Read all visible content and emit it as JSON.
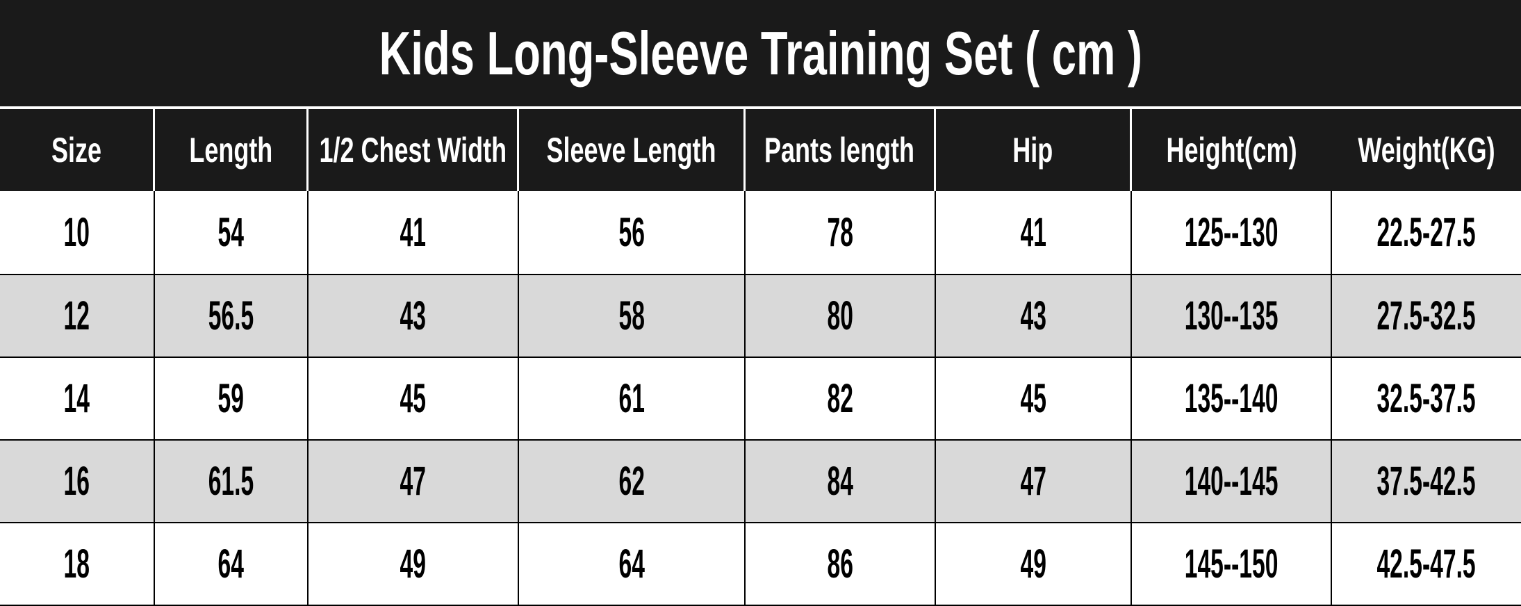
{
  "title": "Kids Long-Sleeve Training Set ( cm )",
  "colors": {
    "band_background": "#1a1a1a",
    "header_text": "#ffffff",
    "row_background": "#ffffff",
    "row_alt_background": "#d9d9d9",
    "data_text": "#000000",
    "grid_line": "#000000",
    "header_divider": "#ffffff"
  },
  "chart_data": {
    "type": "table",
    "title": "Kids Long-Sleeve Training Set ( cm )",
    "columns": [
      "Size",
      "Length",
      "1/2 Chest Width",
      "Sleeve Length",
      "Pants length",
      "Hip",
      "Height(cm)",
      "Weight(KG)"
    ],
    "rows": [
      [
        "10",
        "54",
        "41",
        "56",
        "78",
        "41",
        "125--130",
        "22.5-27.5"
      ],
      [
        "12",
        "56.5",
        "43",
        "58",
        "80",
        "43",
        "130--135",
        "27.5-32.5"
      ],
      [
        "14",
        "59",
        "45",
        "61",
        "82",
        "45",
        "135--140",
        "32.5-37.5"
      ],
      [
        "16",
        "61.5",
        "47",
        "62",
        "84",
        "47",
        "140--145",
        "37.5-42.5"
      ],
      [
        "18",
        "64",
        "49",
        "64",
        "86",
        "49",
        "145--150",
        "42.5-47.5"
      ]
    ],
    "layout": {
      "row_striping": "white / light-gray alternating",
      "header_style": "dark band, white condensed bold text",
      "units": "cm"
    }
  }
}
